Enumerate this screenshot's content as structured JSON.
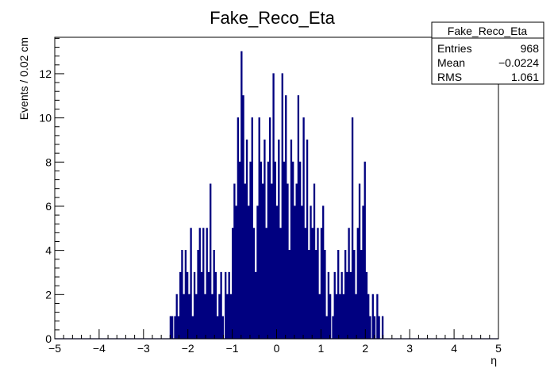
{
  "chart_data": {
    "type": "bar",
    "title": "Fake_Reco_Eta",
    "xlabel": "η",
    "ylabel": "Events / 0.02 cm",
    "xlim": [
      -5,
      5
    ],
    "ylim": [
      0,
      13.65
    ],
    "bin_width": 0.02,
    "x_ticks": [
      -5,
      -4,
      -3,
      -2,
      -1,
      0,
      1,
      2,
      3,
      4,
      5
    ],
    "y_ticks": [
      0,
      2,
      4,
      6,
      8,
      10,
      12
    ],
    "grid": false,
    "line_color": "#000080",
    "stats_box": {
      "placement": "top-right",
      "title": "Fake_Reco_Eta",
      "rows": [
        {
          "label": "Entries",
          "value": "968"
        },
        {
          "label": "Mean",
          "value": "−0.0224"
        },
        {
          "label": "RMS",
          "value": "1.061"
        }
      ]
    },
    "bins": [
      {
        "x": -2.39,
        "y": 1
      },
      {
        "x": -2.35,
        "y": 1
      },
      {
        "x": -2.29,
        "y": 1
      },
      {
        "x": -2.25,
        "y": 2
      },
      {
        "x": -2.21,
        "y": 1
      },
      {
        "x": -2.17,
        "y": 3
      },
      {
        "x": -2.13,
        "y": 4
      },
      {
        "x": -2.09,
        "y": 2
      },
      {
        "x": -2.05,
        "y": 4
      },
      {
        "x": -2.01,
        "y": 3
      },
      {
        "x": -1.97,
        "y": 2
      },
      {
        "x": -1.93,
        "y": 5
      },
      {
        "x": -1.89,
        "y": 1
      },
      {
        "x": -1.85,
        "y": 3
      },
      {
        "x": -1.81,
        "y": 2
      },
      {
        "x": -1.77,
        "y": 4
      },
      {
        "x": -1.73,
        "y": 5
      },
      {
        "x": -1.69,
        "y": 3
      },
      {
        "x": -1.65,
        "y": 5
      },
      {
        "x": -1.61,
        "y": 2
      },
      {
        "x": -1.57,
        "y": 5
      },
      {
        "x": -1.53,
        "y": 3
      },
      {
        "x": -1.49,
        "y": 7
      },
      {
        "x": -1.45,
        "y": 2
      },
      {
        "x": -1.41,
        "y": 4
      },
      {
        "x": -1.37,
        "y": 3
      },
      {
        "x": -1.33,
        "y": 1
      },
      {
        "x": -1.29,
        "y": 2
      },
      {
        "x": -1.25,
        "y": 3
      },
      {
        "x": -1.21,
        "y": 1
      },
      {
        "x": -1.15,
        "y": 3
      },
      {
        "x": -1.11,
        "y": 2
      },
      {
        "x": -1.07,
        "y": 3
      },
      {
        "x": -1.03,
        "y": 2
      },
      {
        "x": -0.99,
        "y": 5
      },
      {
        "x": -0.95,
        "y": 7
      },
      {
        "x": -0.91,
        "y": 6
      },
      {
        "x": -0.87,
        "y": 10
      },
      {
        "x": -0.83,
        "y": 8
      },
      {
        "x": -0.79,
        "y": 13
      },
      {
        "x": -0.75,
        "y": 11
      },
      {
        "x": -0.71,
        "y": 7
      },
      {
        "x": -0.67,
        "y": 9
      },
      {
        "x": -0.63,
        "y": 6
      },
      {
        "x": -0.59,
        "y": 8
      },
      {
        "x": -0.55,
        "y": 10
      },
      {
        "x": -0.51,
        "y": 5
      },
      {
        "x": -0.47,
        "y": 3
      },
      {
        "x": -0.43,
        "y": 6
      },
      {
        "x": -0.39,
        "y": 10
      },
      {
        "x": -0.35,
        "y": 8
      },
      {
        "x": -0.31,
        "y": 7
      },
      {
        "x": -0.27,
        "y": 9
      },
      {
        "x": -0.23,
        "y": 5
      },
      {
        "x": -0.19,
        "y": 8
      },
      {
        "x": -0.15,
        "y": 10
      },
      {
        "x": -0.11,
        "y": 7
      },
      {
        "x": -0.07,
        "y": 12
      },
      {
        "x": -0.03,
        "y": 8
      },
      {
        "x": 0.01,
        "y": 6
      },
      {
        "x": 0.05,
        "y": 9
      },
      {
        "x": 0.09,
        "y": 5
      },
      {
        "x": 0.13,
        "y": 12
      },
      {
        "x": 0.17,
        "y": 8
      },
      {
        "x": 0.21,
        "y": 11
      },
      {
        "x": 0.25,
        "y": 7
      },
      {
        "x": 0.29,
        "y": 4
      },
      {
        "x": 0.33,
        "y": 9
      },
      {
        "x": 0.37,
        "y": 8
      },
      {
        "x": 0.41,
        "y": 6
      },
      {
        "x": 0.45,
        "y": 7
      },
      {
        "x": 0.49,
        "y": 11
      },
      {
        "x": 0.53,
        "y": 8
      },
      {
        "x": 0.57,
        "y": 6
      },
      {
        "x": 0.61,
        "y": 10
      },
      {
        "x": 0.65,
        "y": 5
      },
      {
        "x": 0.69,
        "y": 9
      },
      {
        "x": 0.73,
        "y": 4
      },
      {
        "x": 0.77,
        "y": 6
      },
      {
        "x": 0.81,
        "y": 5
      },
      {
        "x": 0.85,
        "y": 7
      },
      {
        "x": 0.89,
        "y": 4
      },
      {
        "x": 0.93,
        "y": 5
      },
      {
        "x": 0.97,
        "y": 2
      },
      {
        "x": 1.01,
        "y": 5
      },
      {
        "x": 1.05,
        "y": 6
      },
      {
        "x": 1.09,
        "y": 4
      },
      {
        "x": 1.13,
        "y": 1
      },
      {
        "x": 1.17,
        "y": 3
      },
      {
        "x": 1.21,
        "y": 2
      },
      {
        "x": 1.27,
        "y": 1
      },
      {
        "x": 1.31,
        "y": 3
      },
      {
        "x": 1.35,
        "y": 2
      },
      {
        "x": 1.39,
        "y": 4
      },
      {
        "x": 1.43,
        "y": 2
      },
      {
        "x": 1.47,
        "y": 3
      },
      {
        "x": 1.51,
        "y": 2
      },
      {
        "x": 1.55,
        "y": 4
      },
      {
        "x": 1.59,
        "y": 3
      },
      {
        "x": 1.63,
        "y": 5
      },
      {
        "x": 1.67,
        "y": 3
      },
      {
        "x": 1.71,
        "y": 10
      },
      {
        "x": 1.75,
        "y": 4
      },
      {
        "x": 1.79,
        "y": 2
      },
      {
        "x": 1.83,
        "y": 5
      },
      {
        "x": 1.87,
        "y": 7
      },
      {
        "x": 1.91,
        "y": 4
      },
      {
        "x": 1.95,
        "y": 6
      },
      {
        "x": 1.99,
        "y": 8
      },
      {
        "x": 2.03,
        "y": 3
      },
      {
        "x": 2.07,
        "y": 2
      },
      {
        "x": 2.11,
        "y": 1
      },
      {
        "x": 2.17,
        "y": 2
      },
      {
        "x": 2.21,
        "y": 1
      },
      {
        "x": 2.27,
        "y": 2
      },
      {
        "x": 2.31,
        "y": 1
      },
      {
        "x": 2.39,
        "y": 1
      }
    ]
  }
}
